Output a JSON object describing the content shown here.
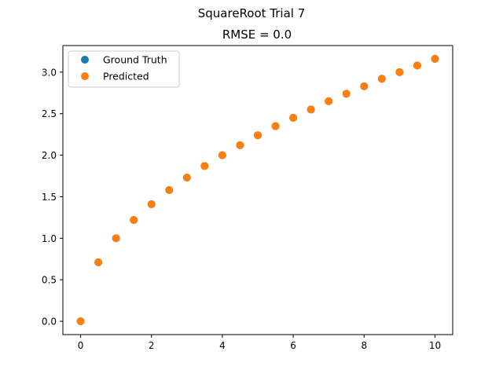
{
  "figure": {
    "suptitle": "SquareRoot Trial 7"
  },
  "chart_data": {
    "type": "scatter",
    "title": "RMSE = 0.0",
    "xlabel": "",
    "ylabel": "",
    "xlim": [
      -0.5,
      10.5
    ],
    "ylim": [
      -0.16,
      3.32
    ],
    "x_ticks": [
      0,
      2,
      4,
      6,
      8,
      10
    ],
    "x_tick_labels": [
      "0",
      "2",
      "4",
      "6",
      "8",
      "10"
    ],
    "y_ticks": [
      0.0,
      0.5,
      1.0,
      1.5,
      2.0,
      2.5,
      3.0
    ],
    "y_tick_labels": [
      "0.0",
      "0.5",
      "1.0",
      "1.5",
      "2.0",
      "2.5",
      "3.0"
    ],
    "grid": false,
    "legend_placement": "upper-left",
    "series": [
      {
        "name": "Ground Truth",
        "color": "#1f77b4",
        "x": [
          0,
          0.5,
          1,
          1.5,
          2,
          2.5,
          3,
          3.5,
          4,
          4.5,
          5,
          5.5,
          6,
          6.5,
          7,
          7.5,
          8,
          8.5,
          9,
          9.5,
          10
        ],
        "y": [
          0.0,
          0.71,
          1.0,
          1.22,
          1.41,
          1.58,
          1.73,
          1.87,
          2.0,
          2.12,
          2.24,
          2.35,
          2.45,
          2.55,
          2.65,
          2.74,
          2.83,
          2.92,
          3.0,
          3.08,
          3.16
        ]
      },
      {
        "name": "Predicted",
        "color": "#ff7f0e",
        "x": [
          0,
          0.5,
          1,
          1.5,
          2,
          2.5,
          3,
          3.5,
          4,
          4.5,
          5,
          5.5,
          6,
          6.5,
          7,
          7.5,
          8,
          8.5,
          9,
          9.5,
          10
        ],
        "y": [
          0.0,
          0.71,
          1.0,
          1.22,
          1.41,
          1.58,
          1.73,
          1.87,
          2.0,
          2.12,
          2.24,
          2.35,
          2.45,
          2.55,
          2.65,
          2.74,
          2.83,
          2.92,
          3.0,
          3.08,
          3.16
        ]
      }
    ]
  }
}
